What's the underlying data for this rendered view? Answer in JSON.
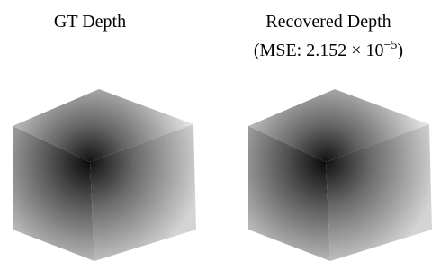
{
  "panels": [
    {
      "title": "GT Depth"
    },
    {
      "title": "Recovered Depth",
      "caption_prefix": "(MSE: 2.152 × 10",
      "caption_exponent": "−5",
      "caption_suffix": ")"
    }
  ]
}
